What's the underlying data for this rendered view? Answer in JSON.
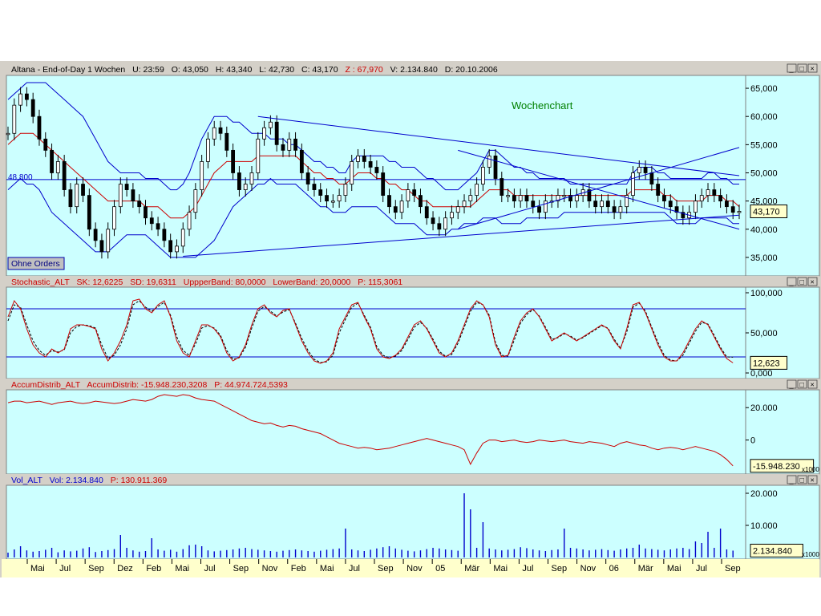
{
  "panels": {
    "price": {
      "header": {
        "prefix": "Altana - End-of-Day 1 Wochen",
        "u": "U: 23:59",
        "o": "O: 43,050",
        "h": "H: 43,340",
        "l": "L: 42,730",
        "c": "C: 43,170",
        "z": "Z : 67,970",
        "v": "V: 2.134.840",
        "d": "D: 20.10.2006"
      },
      "annotation": "Wochenchart",
      "line_label": "48,800",
      "last_value": "43,170",
      "ohne_orders": "Ohne Orders"
    },
    "stochastic": {
      "header": {
        "name": "Stochastic_ALT",
        "sk": "SK: 12,6225",
        "sd": "SD: 19,6311",
        "upper": "UppperBand: 80,0000",
        "lower": "LowerBand: 20,0000",
        "p": "P: 115,3061"
      },
      "last_value": "12,623"
    },
    "accum": {
      "header": {
        "name": "AccumDistrib_ALT",
        "ad": "AccumDistrib: -15.948.230,3208",
        "p": "P: 44.974.724,5393"
      },
      "last_value": "-15.948.230",
      "unit": "x1000"
    },
    "volume": {
      "header": {
        "name": "Vol_ALT",
        "vol": "Vol: 2.134.840",
        "p": "P: 130.911.369"
      },
      "last_value": "2.134.840",
      "unit": "x1000"
    }
  },
  "window_buttons": [
    "_",
    "□",
    "×"
  ],
  "colors": {
    "bg": "#ccffff",
    "candle": "#000000",
    "ma": "#cc0000",
    "band": "#0000cc",
    "annot": "#008000"
  },
  "chart_data": [
    {
      "type": "candlestick",
      "title": "Altana - End-of-Day 1 Wochen",
      "ylim": [
        32,
        67
      ],
      "yticks": [
        "35,000",
        "40,000",
        "45,000",
        "50,000",
        "55,000",
        "60,000",
        "65,000"
      ],
      "xticks": [
        "Mai",
        "Jul",
        "Sep",
        "Dez",
        "Feb",
        "Mai",
        "Jul",
        "Sep",
        "Nov",
        "Feb",
        "Mai",
        "Jul",
        "Sep",
        "Nov",
        "05",
        "Mär",
        "Mai",
        "Jul",
        "Sep",
        "Nov",
        "06",
        "Mär",
        "Mai",
        "Jul",
        "Sep"
      ],
      "horizontal_line": 48.8,
      "close": [
        57,
        62,
        64,
        63,
        60,
        56,
        54,
        50,
        52,
        47,
        44,
        48,
        46,
        40,
        38,
        36,
        40,
        44,
        48,
        47,
        45,
        44,
        42,
        41,
        40,
        38,
        36,
        37,
        40,
        43,
        47,
        52,
        56,
        58,
        57,
        54,
        50,
        47,
        48,
        50,
        56,
        58,
        59,
        55,
        54,
        56,
        54,
        50,
        48,
        47,
        46,
        45,
        45,
        46,
        48,
        52,
        53,
        52,
        51,
        50,
        46,
        44,
        43,
        45,
        47,
        46,
        44,
        42,
        41,
        40,
        42,
        43,
        44,
        45,
        46,
        48,
        51,
        53,
        49,
        46,
        46,
        45,
        46,
        45,
        44,
        43,
        45,
        45,
        46,
        46,
        45,
        46,
        47,
        45,
        44,
        45,
        44,
        43,
        44,
        46,
        50,
        51,
        50,
        48,
        46,
        45,
        44,
        43,
        42,
        43,
        45,
        46,
        47,
        46,
        45,
        44,
        43,
        43.17
      ],
      "ma": [
        55,
        56,
        57,
        57,
        57,
        56,
        55,
        54,
        53,
        52,
        51,
        50,
        49,
        48,
        47,
        46,
        45,
        45,
        45,
        45,
        45,
        45,
        44,
        44,
        44,
        43,
        42,
        42,
        42,
        43,
        44,
        46,
        48,
        50,
        51,
        52,
        52,
        52,
        52,
        52,
        53,
        53,
        53,
        53,
        53,
        53,
        53,
        52,
        51,
        50,
        50,
        49,
        49,
        48,
        48,
        49,
        50,
        50,
        50,
        49,
        49,
        48,
        48,
        47,
        47,
        46,
        45,
        45,
        44,
        44,
        44,
        44,
        44,
        44,
        44,
        45,
        46,
        47,
        47,
        47,
        47,
        46,
        46,
        46,
        46,
        46,
        46,
        46,
        46,
        46,
        46,
        46,
        46,
        46,
        46,
        46,
        46,
        46,
        46,
        46,
        47,
        47,
        47,
        47,
        47,
        46,
        46,
        45,
        45,
        45,
        45,
        45,
        46,
        46,
        46,
        45,
        45,
        44
      ],
      "upper_band": [
        63,
        64,
        65,
        66,
        66,
        66,
        66,
        65,
        64,
        63,
        62,
        61,
        60,
        58,
        56,
        54,
        52,
        51,
        50,
        50,
        50,
        50,
        49,
        49,
        49,
        48,
        47,
        47,
        48,
        50,
        53,
        56,
        58,
        60,
        60,
        60,
        59,
        59,
        58,
        57,
        57,
        57,
        56,
        56,
        56,
        55,
        55,
        54,
        53,
        52,
        52,
        51,
        51,
        50,
        50,
        52,
        53,
        53,
        53,
        53,
        53,
        52,
        52,
        51,
        51,
        51,
        50,
        49,
        49,
        48,
        47,
        47,
        47,
        48,
        49,
        50,
        52,
        54,
        54,
        53,
        52,
        51,
        51,
        50,
        50,
        49,
        49,
        49,
        49,
        49,
        48,
        48,
        48,
        48,
        48,
        48,
        48,
        48,
        48,
        48,
        50,
        51,
        51,
        51,
        50,
        50,
        49,
        49,
        49,
        49,
        49,
        49,
        50,
        50,
        49,
        49,
        48,
        48
      ],
      "lower_band": [
        47,
        48,
        49,
        48,
        48,
        47,
        45,
        43,
        42,
        41,
        40,
        39,
        38,
        37,
        36,
        36,
        36,
        37,
        38,
        39,
        39,
        39,
        39,
        38,
        37,
        36,
        35,
        35,
        35,
        35,
        35,
        36,
        37,
        38,
        40,
        42,
        44,
        45,
        46,
        47,
        48,
        48,
        49,
        48,
        48,
        48,
        48,
        47,
        46,
        45,
        44,
        44,
        43,
        43,
        43,
        44,
        44,
        44,
        44,
        44,
        43,
        42,
        41,
        41,
        41,
        41,
        40,
        39,
        39,
        39,
        39,
        40,
        40,
        41,
        41,
        41,
        42,
        42,
        42,
        41,
        41,
        41,
        41,
        42,
        42,
        42,
        42,
        42,
        42,
        43,
        43,
        43,
        43,
        43,
        43,
        43,
        43,
        43,
        43,
        43,
        43,
        43,
        43,
        43,
        43,
        43,
        42,
        41,
        41,
        41,
        41,
        42,
        42,
        42,
        42,
        42,
        41,
        41
      ],
      "trendlines": [
        {
          "from": [
            40,
            60
          ],
          "to": [
            117,
            49.5
          ]
        },
        {
          "from": [
            28,
            35.2
          ],
          "to": [
            117,
            42.5
          ]
        },
        {
          "from": [
            72,
            40
          ],
          "to": [
            117,
            54.5
          ]
        },
        {
          "from": [
            72,
            54
          ],
          "to": [
            117,
            40
          ]
        }
      ]
    },
    {
      "type": "line",
      "title": "Stochastic_ALT",
      "ylim": [
        -5,
        105
      ],
      "yticks": [
        "0,000",
        "50,000",
        "100,000"
      ],
      "bands": [
        80,
        20
      ],
      "series": [
        {
          "name": "SK",
          "values": [
            70,
            90,
            80,
            55,
            35,
            25,
            20,
            30,
            25,
            30,
            55,
            60,
            60,
            58,
            55,
            30,
            15,
            25,
            40,
            60,
            90,
            92,
            80,
            75,
            85,
            90,
            70,
            40,
            25,
            20,
            40,
            60,
            60,
            55,
            45,
            25,
            15,
            20,
            35,
            60,
            80,
            85,
            75,
            70,
            78,
            80,
            60,
            40,
            25,
            15,
            12,
            15,
            25,
            55,
            70,
            85,
            88,
            70,
            55,
            30,
            20,
            18,
            22,
            30,
            45,
            60,
            65,
            55,
            40,
            25,
            20,
            25,
            40,
            60,
            80,
            90,
            85,
            70,
            35,
            20,
            22,
            45,
            65,
            75,
            80,
            70,
            55,
            40,
            45,
            50,
            45,
            40,
            45,
            50,
            55,
            60,
            55,
            40,
            30,
            55,
            85,
            88,
            75,
            55,
            35,
            20,
            15,
            15,
            25,
            40,
            55,
            65,
            60,
            45,
            30,
            18,
            12.62
          ]
        },
        {
          "name": "SD",
          "values": [
            65,
            85,
            82,
            60,
            40,
            28,
            22,
            28,
            26,
            29,
            50,
            58,
            60,
            59,
            56,
            35,
            18,
            22,
            35,
            55,
            85,
            90,
            82,
            77,
            83,
            88,
            72,
            45,
            28,
            22,
            36,
            56,
            59,
            56,
            47,
            28,
            17,
            19,
            32,
            56,
            77,
            83,
            77,
            71,
            76,
            79,
            62,
            43,
            28,
            17,
            13,
            14,
            22,
            50,
            67,
            82,
            87,
            72,
            57,
            33,
            22,
            19,
            21,
            28,
            42,
            57,
            63,
            56,
            42,
            27,
            21,
            23,
            37,
            57,
            77,
            88,
            85,
            72,
            38,
            22,
            21,
            41,
            62,
            73,
            79,
            71,
            57,
            42,
            44,
            49,
            46,
            41,
            44,
            49,
            54,
            59,
            56,
            42,
            31,
            51,
            82,
            87,
            77,
            57,
            38,
            22,
            16,
            15,
            22,
            37,
            52,
            63,
            61,
            47,
            32,
            20,
            19.63
          ]
        }
      ]
    },
    {
      "type": "line",
      "title": "AccumDistrib_ALT",
      "ylim": [
        -20000,
        30000
      ],
      "yticks": [
        "20.000",
        "0"
      ],
      "series": [
        {
          "name": "AccumDistrib",
          "values": [
            23000,
            24000,
            24000,
            23000,
            23500,
            24000,
            23000,
            22000,
            23000,
            23500,
            24000,
            23000,
            22500,
            23000,
            24000,
            23500,
            23000,
            22500,
            23000,
            24000,
            25000,
            24500,
            24000,
            25000,
            27000,
            28000,
            27500,
            27000,
            28000,
            27500,
            26000,
            25000,
            24500,
            24000,
            22000,
            20000,
            18000,
            16000,
            14000,
            12000,
            11000,
            10000,
            10500,
            9000,
            8000,
            9000,
            8500,
            7000,
            6000,
            5000,
            4000,
            2000,
            0,
            -2000,
            -3000,
            -4000,
            -5000,
            -4500,
            -5000,
            -6000,
            -5500,
            -5000,
            -4000,
            -3000,
            -2000,
            -1000,
            0,
            1000,
            0,
            -1000,
            -2000,
            -3000,
            -4000,
            -6000,
            -15000,
            -8000,
            -2000,
            0,
            0,
            -1000,
            -500,
            0,
            -1000,
            -1500,
            -1000,
            0,
            -500,
            -1000,
            -500,
            0,
            -1000,
            -1500,
            -2000,
            -1000,
            -1500,
            -2000,
            -3000,
            -4000,
            -2000,
            -1000,
            -2000,
            -3000,
            -3500,
            -5000,
            -6000,
            -5000,
            -4500,
            -5000,
            -6000,
            -5000,
            -4000,
            -5000,
            -6000,
            -7000,
            -9000,
            -12000,
            -15948
          ]
        }
      ]
    },
    {
      "type": "bar",
      "title": "Vol_ALT",
      "ylim": [
        0,
        22000
      ],
      "yticks": [
        "20.000",
        "10.000"
      ],
      "values": [
        1500,
        2500,
        3500,
        2200,
        1800,
        2000,
        2400,
        3000,
        1600,
        2200,
        1900,
        2100,
        2800,
        3200,
        1700,
        2000,
        2300,
        2600,
        7000,
        3000,
        2200,
        1800,
        2000,
        6000,
        2500,
        2100,
        2400,
        1800,
        2600,
        3800,
        4000,
        3500,
        2200,
        1900,
        2100,
        2300,
        2500,
        2800,
        3000,
        2600,
        2400,
        2200,
        2000,
        1800,
        2100,
        2300,
        2500,
        2200,
        2000,
        1800,
        2100,
        2400,
        2600,
        2800,
        9000,
        2500,
        2200,
        2000,
        2400,
        2800,
        3200,
        3500,
        2800,
        2400,
        2100,
        1900,
        2200,
        2600,
        3000,
        2800,
        2500,
        2300,
        2100,
        20000,
        15000,
        3000,
        11000,
        2800,
        2500,
        2200,
        2400,
        2600,
        3200,
        2900,
        2500,
        2200,
        2000,
        2300,
        2500,
        9000,
        3000,
        2800,
        2500,
        2200,
        2400,
        2600,
        2300,
        2100,
        2500,
        2800,
        3000,
        4000,
        2800,
        2600,
        2400,
        2200,
        2500,
        2800,
        3000,
        2600,
        5000,
        4500,
        8000,
        3000,
        9000,
        2500,
        2134
      ]
    }
  ]
}
